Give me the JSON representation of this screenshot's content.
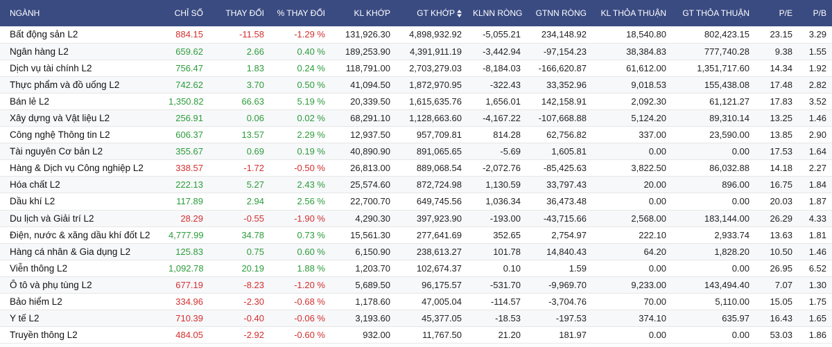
{
  "colors": {
    "header_bg": "#3a4b82",
    "up": "#2b9c3a",
    "down": "#d32f2f"
  },
  "headers": [
    "NGÀNH",
    "CHỈ SỐ",
    "THAY ĐỔI",
    "% THAY ĐỔI",
    "KL KHỚP",
    "GT KHỚP",
    "KLNN RÒNG",
    "GTNN RÒNG",
    "KL THỎA THUẬN",
    "GT THỎA THUẬN",
    "P/E",
    "P/B"
  ],
  "sort_icon": "sort-up-down-icon",
  "rows": [
    {
      "name": "Bất động sản L2",
      "index": "884.15",
      "change": "-11.58",
      "pct": "-1.29 %",
      "kl_khop": "131,926.30",
      "gt_khop": "4,898,932.92",
      "klnn": "-5,055.21",
      "gtnn": "234,148.92",
      "kl_tt": "18,540.80",
      "gt_tt": "802,423.15",
      "pe": "23.15",
      "pb": "3.29",
      "dir": "down"
    },
    {
      "name": "Ngân hàng L2",
      "index": "659.62",
      "change": "2.66",
      "pct": "0.40 %",
      "kl_khop": "189,253.90",
      "gt_khop": "4,391,911.19",
      "klnn": "-3,442.94",
      "gtnn": "-97,154.23",
      "kl_tt": "38,384.83",
      "gt_tt": "777,740.28",
      "pe": "9.38",
      "pb": "1.55",
      "dir": "up"
    },
    {
      "name": "Dịch vụ tài chính L2",
      "index": "756.47",
      "change": "1.83",
      "pct": "0.24 %",
      "kl_khop": "118,791.00",
      "gt_khop": "2,703,279.03",
      "klnn": "-8,184.03",
      "gtnn": "-166,620.87",
      "kl_tt": "61,612.00",
      "gt_tt": "1,351,717.60",
      "pe": "14.34",
      "pb": "1.92",
      "dir": "up"
    },
    {
      "name": "Thực phẩm và đồ uống L2",
      "index": "742.62",
      "change": "3.70",
      "pct": "0.50 %",
      "kl_khop": "41,094.50",
      "gt_khop": "1,872,970.95",
      "klnn": "-322.43",
      "gtnn": "33,352.96",
      "kl_tt": "9,018.53",
      "gt_tt": "155,438.08",
      "pe": "17.48",
      "pb": "2.82",
      "dir": "up"
    },
    {
      "name": "Bán lẻ L2",
      "index": "1,350.82",
      "change": "66.63",
      "pct": "5.19 %",
      "kl_khop": "20,339.50",
      "gt_khop": "1,615,635.76",
      "klnn": "1,656.01",
      "gtnn": "142,158.91",
      "kl_tt": "2,092.30",
      "gt_tt": "61,121.27",
      "pe": "17.83",
      "pb": "3.52",
      "dir": "up"
    },
    {
      "name": "Xây dựng và Vật liệu L2",
      "index": "256.91",
      "change": "0.06",
      "pct": "0.02 %",
      "kl_khop": "68,291.10",
      "gt_khop": "1,128,663.60",
      "klnn": "-4,167.22",
      "gtnn": "-107,668.88",
      "kl_tt": "5,124.20",
      "gt_tt": "89,310.14",
      "pe": "13.25",
      "pb": "1.46",
      "dir": "up"
    },
    {
      "name": "Công nghệ Thông tin L2",
      "index": "606.37",
      "change": "13.57",
      "pct": "2.29 %",
      "kl_khop": "12,937.50",
      "gt_khop": "957,709.81",
      "klnn": "814.28",
      "gtnn": "62,756.82",
      "kl_tt": "337.00",
      "gt_tt": "23,590.00",
      "pe": "13.85",
      "pb": "2.90",
      "dir": "up"
    },
    {
      "name": "Tài nguyên Cơ bản L2",
      "index": "355.67",
      "change": "0.69",
      "pct": "0.19 %",
      "kl_khop": "40,890.90",
      "gt_khop": "891,065.65",
      "klnn": "-5.69",
      "gtnn": "1,605.81",
      "kl_tt": "0.00",
      "gt_tt": "0.00",
      "pe": "17.53",
      "pb": "1.64",
      "dir": "up"
    },
    {
      "name": "Hàng & Dịch vụ Công nghiệp L2",
      "index": "338.57",
      "change": "-1.72",
      "pct": "-0.50 %",
      "kl_khop": "26,813.00",
      "gt_khop": "889,068.54",
      "klnn": "-2,072.76",
      "gtnn": "-85,425.63",
      "kl_tt": "3,822.50",
      "gt_tt": "86,032.88",
      "pe": "14.18",
      "pb": "2.27",
      "dir": "down"
    },
    {
      "name": "Hóa chất L2",
      "index": "222.13",
      "change": "5.27",
      "pct": "2.43 %",
      "kl_khop": "25,574.60",
      "gt_khop": "872,724.98",
      "klnn": "1,130.59",
      "gtnn": "33,797.43",
      "kl_tt": "20.00",
      "gt_tt": "896.00",
      "pe": "16.75",
      "pb": "1.84",
      "dir": "up"
    },
    {
      "name": "Dầu khí L2",
      "index": "117.89",
      "change": "2.94",
      "pct": "2.56 %",
      "kl_khop": "22,700.70",
      "gt_khop": "649,745.56",
      "klnn": "1,036.34",
      "gtnn": "36,473.48",
      "kl_tt": "0.00",
      "gt_tt": "0.00",
      "pe": "20.03",
      "pb": "1.87",
      "dir": "up"
    },
    {
      "name": "Du lịch và Giải trí L2",
      "index": "28.29",
      "change": "-0.55",
      "pct": "-1.90 %",
      "kl_khop": "4,290.30",
      "gt_khop": "397,923.90",
      "klnn": "-193.00",
      "gtnn": "-43,715.66",
      "kl_tt": "2,568.00",
      "gt_tt": "183,144.00",
      "pe": "26.29",
      "pb": "4.33",
      "dir": "down"
    },
    {
      "name": "Điện, nước & xăng dầu khí đốt L2",
      "index": "4,777.99",
      "change": "34.78",
      "pct": "0.73 %",
      "kl_khop": "15,561.30",
      "gt_khop": "277,641.69",
      "klnn": "352.65",
      "gtnn": "2,754.97",
      "kl_tt": "222.10",
      "gt_tt": "2,933.74",
      "pe": "13.63",
      "pb": "1.81",
      "dir": "up"
    },
    {
      "name": "Hàng cá nhân & Gia dụng L2",
      "index": "125.83",
      "change": "0.75",
      "pct": "0.60 %",
      "kl_khop": "6,150.90",
      "gt_khop": "238,613.27",
      "klnn": "101.78",
      "gtnn": "14,840.43",
      "kl_tt": "64.20",
      "gt_tt": "1,828.20",
      "pe": "10.50",
      "pb": "1.46",
      "dir": "up"
    },
    {
      "name": "Viễn thông L2",
      "index": "1,092.78",
      "change": "20.19",
      "pct": "1.88 %",
      "kl_khop": "1,203.70",
      "gt_khop": "102,674.37",
      "klnn": "0.10",
      "gtnn": "1.59",
      "kl_tt": "0.00",
      "gt_tt": "0.00",
      "pe": "26.95",
      "pb": "6.52",
      "dir": "up"
    },
    {
      "name": "Ô tô và phụ tùng L2",
      "index": "677.19",
      "change": "-8.23",
      "pct": "-1.20 %",
      "kl_khop": "5,689.50",
      "gt_khop": "96,175.57",
      "klnn": "-531.70",
      "gtnn": "-9,969.70",
      "kl_tt": "9,233.00",
      "gt_tt": "143,494.40",
      "pe": "7.07",
      "pb": "1.30",
      "dir": "down"
    },
    {
      "name": "Bảo hiểm L2",
      "index": "334.96",
      "change": "-2.30",
      "pct": "-0.68 %",
      "kl_khop": "1,178.60",
      "gt_khop": "47,005.04",
      "klnn": "-114.57",
      "gtnn": "-3,704.76",
      "kl_tt": "70.00",
      "gt_tt": "5,110.00",
      "pe": "15.05",
      "pb": "1.75",
      "dir": "down"
    },
    {
      "name": "Y tế L2",
      "index": "710.39",
      "change": "-0.40",
      "pct": "-0.06 %",
      "kl_khop": "3,193.60",
      "gt_khop": "45,377.05",
      "klnn": "-18.53",
      "gtnn": "-197.53",
      "kl_tt": "374.10",
      "gt_tt": "635.97",
      "pe": "16.43",
      "pb": "1.65",
      "dir": "down"
    },
    {
      "name": "Truyền thông L2",
      "index": "484.05",
      "change": "-2.92",
      "pct": "-0.60 %",
      "kl_khop": "932.00",
      "gt_khop": "11,767.50",
      "klnn": "21.20",
      "gtnn": "181.97",
      "kl_tt": "0.00",
      "gt_tt": "0.00",
      "pe": "53.03",
      "pb": "1.86",
      "dir": "down"
    }
  ]
}
